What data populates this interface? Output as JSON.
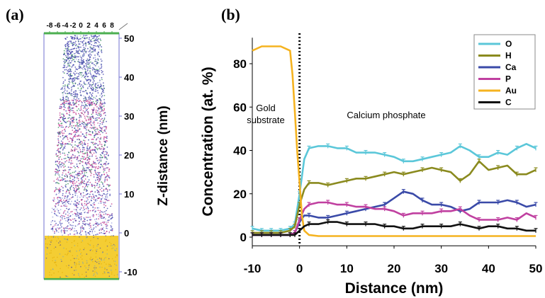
{
  "panel_a": {
    "label": "(a)",
    "x_ticks": [
      "-8",
      "-6",
      "-4",
      "-2",
      "0",
      "2",
      "4",
      "6",
      "8"
    ],
    "z_ticks": [
      "50",
      "40",
      "30",
      "20",
      "10",
      "0",
      "-10"
    ],
    "z_label": "Z-distance (nm)",
    "colors": {
      "frame": "#7070d0",
      "top_axis": "#4caf50",
      "gold": "#f2c40f",
      "blue": "#3a3aa8",
      "magenta": "#c0308a",
      "green": "#2e8b57"
    }
  },
  "panel_b": {
    "label": "(b)",
    "annotations": {
      "gold": "Gold\nsubstrate",
      "calcium": "Calcium phosphate"
    }
  },
  "chart_data": {
    "type": "line",
    "title": "",
    "xlabel": "Distance (nm)",
    "ylabel": "Concentration (at. %)",
    "xlim": [
      -10,
      50
    ],
    "ylim": [
      -4,
      92
    ],
    "xticks": [
      -10,
      0,
      10,
      20,
      30,
      40,
      50
    ],
    "yticks": [
      0,
      20,
      40,
      60,
      80
    ],
    "interface_x": 0,
    "legend_position": "top-right",
    "series": [
      {
        "name": "O",
        "color": "#5bc7d9",
        "error_bars": true,
        "x": [
          -10,
          -8,
          -6,
          -4,
          -2,
          -1,
          0,
          1,
          2,
          4,
          6,
          8,
          10,
          12,
          14,
          16,
          18,
          20,
          22,
          24,
          26,
          28,
          30,
          32,
          34,
          36,
          38,
          40,
          42,
          44,
          46,
          48,
          50
        ],
        "y": [
          4,
          3,
          3,
          3,
          4,
          6,
          20,
          36,
          41,
          42,
          42,
          41,
          41,
          39,
          39,
          39,
          38,
          37,
          35,
          35,
          36,
          37,
          38,
          39,
          42,
          40,
          37,
          37,
          39,
          38,
          41,
          43,
          41
        ]
      },
      {
        "name": "H",
        "color": "#8a8a1e",
        "error_bars": true,
        "x": [
          -10,
          -8,
          -6,
          -4,
          -2,
          -1,
          0,
          1,
          2,
          4,
          6,
          8,
          10,
          12,
          14,
          16,
          18,
          20,
          22,
          24,
          26,
          28,
          30,
          32,
          34,
          36,
          38,
          40,
          42,
          44,
          46,
          48,
          50
        ],
        "y": [
          2,
          2,
          2,
          2,
          3,
          5,
          15,
          22,
          25,
          25,
          24,
          25,
          26,
          27,
          27,
          28,
          29,
          30,
          29,
          30,
          31,
          32,
          31,
          30,
          26,
          29,
          35,
          31,
          32,
          33,
          29,
          29,
          31
        ]
      },
      {
        "name": "Ca",
        "color": "#3a4aa8",
        "error_bars": true,
        "x": [
          -10,
          -8,
          -6,
          -4,
          -2,
          -1,
          0,
          1,
          2,
          4,
          6,
          8,
          10,
          12,
          14,
          16,
          18,
          20,
          22,
          24,
          26,
          28,
          30,
          32,
          34,
          36,
          38,
          40,
          42,
          44,
          46,
          48,
          50
        ],
        "y": [
          1,
          1,
          1,
          1,
          1,
          2,
          7,
          10,
          10,
          9,
          9,
          10,
          11,
          12,
          13,
          14,
          15,
          18,
          21,
          20,
          17,
          15,
          15,
          14,
          12,
          13,
          16,
          16,
          16,
          17,
          16,
          14,
          15
        ]
      },
      {
        "name": "P",
        "color": "#c040a0",
        "error_bars": true,
        "x": [
          -10,
          -8,
          -6,
          -4,
          -2,
          -1,
          0,
          1,
          2,
          4,
          6,
          8,
          10,
          12,
          14,
          16,
          18,
          20,
          22,
          24,
          26,
          28,
          30,
          32,
          34,
          36,
          38,
          40,
          42,
          44,
          46,
          48,
          50
        ],
        "y": [
          1,
          1,
          1,
          1,
          1,
          2,
          8,
          13,
          15,
          16,
          16,
          15,
          15,
          14,
          14,
          13,
          13,
          12,
          10,
          11,
          11,
          11,
          12,
          12,
          13,
          10,
          8,
          8,
          8,
          9,
          8,
          11,
          9
        ]
      },
      {
        "name": "Au",
        "color": "#f5b320",
        "error_bars": false,
        "x": [
          -10,
          -8,
          -6,
          -4,
          -2,
          -1.5,
          -1,
          -0.5,
          0,
          0.5,
          1,
          2,
          4,
          6,
          10,
          20,
          30,
          40,
          50
        ],
        "y": [
          86,
          88,
          88,
          88,
          86,
          75,
          58,
          40,
          25,
          10,
          3,
          1,
          0.5,
          0.5,
          0.5,
          0.5,
          0.5,
          0.5,
          0.5
        ]
      },
      {
        "name": "C",
        "color": "#111111",
        "error_bars": true,
        "x": [
          -10,
          -8,
          -6,
          -4,
          -2,
          -1,
          0,
          1,
          2,
          4,
          6,
          8,
          10,
          12,
          14,
          16,
          18,
          20,
          22,
          24,
          26,
          28,
          30,
          32,
          34,
          36,
          38,
          40,
          42,
          44,
          46,
          48,
          50
        ],
        "y": [
          1,
          1,
          1,
          1,
          1,
          1,
          3,
          5,
          6,
          6,
          7,
          7,
          6,
          6,
          6,
          6,
          5,
          5,
          4,
          4,
          5,
          5,
          5,
          5,
          6,
          5,
          4,
          5,
          5,
          4,
          4,
          3,
          3
        ]
      }
    ]
  }
}
